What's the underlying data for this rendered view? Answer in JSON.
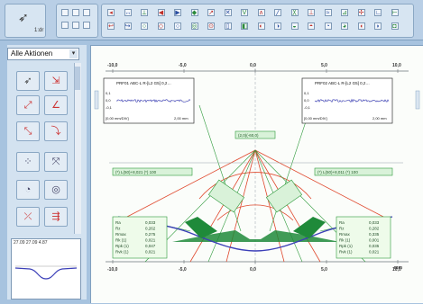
{
  "toolbar": {
    "tool_label": "1:dr",
    "row1_icons": [
      "◂",
      "↔",
      "⟂",
      "◀",
      "▶",
      "◆",
      "↗",
      "✕",
      "V",
      "∧",
      "╱",
      "╳",
      "⊥",
      "≈",
      "⊿",
      "✢",
      "∟",
      "⊢"
    ],
    "row2_icons": [
      "↩",
      "↪",
      "○",
      "◇",
      "○",
      "◎",
      "⊙",
      "▯",
      "◧",
      "◐",
      "◑",
      "◒",
      "◓",
      "◔",
      "◕",
      "◖",
      "◗",
      "◘"
    ]
  },
  "sidebar": {
    "dropdown_value": "Alle Aktionen",
    "thumbnail_label": "27.09  27.09  4.87"
  },
  "chart": {
    "x_ticks": [
      "-10,0",
      "-5,0",
      "0,0",
      "5,0",
      "10,0"
    ],
    "x_unit": "mm",
    "center_label": "(2,0)(-60,0)",
    "left_top_box": "(*) L(50)+8,021 (*) 100",
    "right_top_box": "(*) L(50)+8,011 (*) 100",
    "inset_left": {
      "title": "PRF01  ABC-L R-[L2 G5]  0,2…",
      "y_ticks": [
        "0,1",
        "0,0",
        "-0,1"
      ],
      "x_label": "[0,00 mm/DIV]",
      "x_value": "2,00 mm"
    },
    "inset_right": {
      "title": "PRF02  ABC-L R-[L2 G5]  0,2…",
      "y_ticks": [
        "0,1",
        "0,0",
        "-0,1"
      ],
      "x_label": "[0,00 mm/DIV]",
      "x_value": "2,00 mm"
    },
    "params_left": [
      {
        "name": "Ra",
        "value": "0,033"
      },
      {
        "name": "Rz",
        "value": "0,262"
      },
      {
        "name": "Rmax",
        "value": "0,275"
      },
      {
        "name": "Rk (1)",
        "value": "0,021"
      },
      {
        "name": "Rpk (1)",
        "value": "0,047"
      },
      {
        "name": "Rvk (1)",
        "value": "0,021"
      }
    ],
    "params_right": [
      {
        "name": "Ra",
        "value": "0,033"
      },
      {
        "name": "Rz",
        "value": "0,282"
      },
      {
        "name": "Rmax",
        "value": "0,335"
      },
      {
        "name": "Rk (1)",
        "value": "0,001"
      },
      {
        "name": "Rpk (1)",
        "value": "0,035"
      },
      {
        "name": "Rvk (1)",
        "value": "0,021"
      }
    ],
    "colors": {
      "profile": "#3b3fb8",
      "construct": "#2e9a3b",
      "tolerance": "#e04a2f",
      "grid": "#9aa3a8"
    }
  }
}
